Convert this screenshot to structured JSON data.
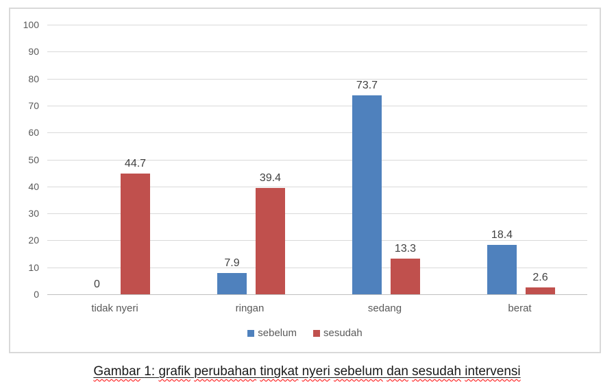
{
  "chart_data": {
    "type": "bar",
    "title": "",
    "xlabel": "",
    "ylabel": "",
    "categories": [
      "tidak nyeri",
      "ringan",
      "sedang",
      "berat"
    ],
    "series": [
      {
        "name": "sebelum",
        "color": "#4F81BD",
        "values": [
          0,
          7.9,
          73.7,
          18.4
        ]
      },
      {
        "name": "sesudah",
        "color": "#C0504D",
        "values": [
          44.7,
          39.4,
          13.3,
          2.6
        ]
      }
    ],
    "data_labels": [
      "0",
      "7.9",
      "73.7",
      "18.4",
      "44.7",
      "39.4",
      "13.3",
      "2.6"
    ],
    "ylim": [
      0,
      100
    ],
    "yticks": [
      0,
      10,
      20,
      30,
      40,
      50,
      60,
      70,
      80,
      90,
      100
    ],
    "grid": true,
    "legend_position": "bottom"
  },
  "caption": {
    "text": "Gambar 1: grafik perubahan tingkat nyeri sebelum dan sesudah intervensi",
    "words": [
      {
        "text": "Gambar",
        "misspelled": true
      },
      {
        "text": "1:",
        "misspelled": false
      },
      {
        "text": "grafik",
        "misspelled": true
      },
      {
        "text": "perubahan",
        "misspelled": true
      },
      {
        "text": "tingkat",
        "misspelled": true
      },
      {
        "text": "nyeri",
        "misspelled": true
      },
      {
        "text": "sebelum",
        "misspelled": true
      },
      {
        "text": "dan",
        "misspelled": true
      },
      {
        "text": "sesudah",
        "misspelled": true
      },
      {
        "text": "intervensi",
        "misspelled": true
      }
    ]
  },
  "colors": {
    "grid": "#d9d9d9",
    "axis_line": "#bfbfbf",
    "tick_label": "#595959",
    "data_label": "#404040",
    "frame_border": "#d9d9d9",
    "squiggle": "#ff0000"
  }
}
